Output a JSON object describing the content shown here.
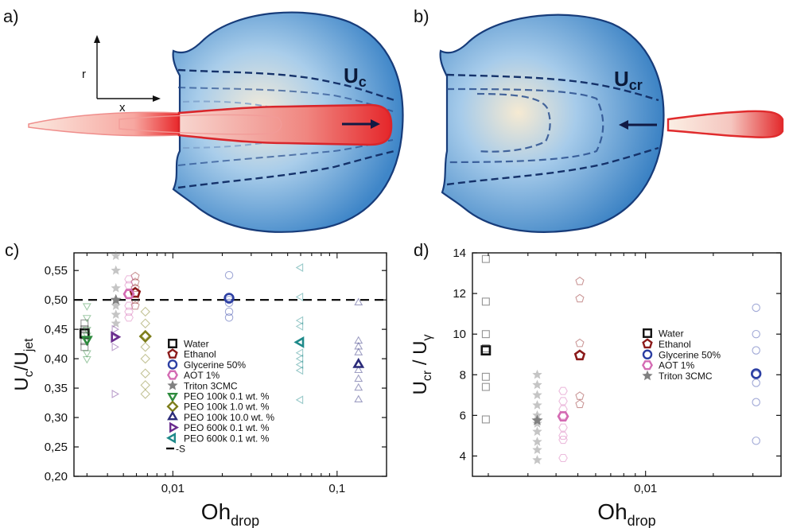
{
  "panels": {
    "a": {
      "label": "a)",
      "axis_r": "r",
      "axis_x": "x",
      "velocity_label": "U",
      "velocity_sub": "c"
    },
    "b": {
      "label": "b)",
      "velocity_label": "U",
      "velocity_sub": "cr"
    }
  },
  "chart_data": [
    {
      "panel": "c)",
      "type": "scatter",
      "xscale": "log",
      "xlim": [
        0.0025,
        0.2
      ],
      "ylim": [
        0.2,
        0.58
      ],
      "xticks": [
        0.01,
        0.1
      ],
      "xtick_labels": [
        "0,01",
        "0,1"
      ],
      "yticks": [
        0.2,
        0.25,
        0.3,
        0.35,
        0.4,
        0.45,
        0.5,
        0.55
      ],
      "ytick_labels": [
        "0,20",
        "0,25",
        "0,30",
        "0,35",
        "0,40",
        "0,45",
        "0,50",
        "0,55"
      ],
      "ylabel": {
        "main": "U",
        "sub1": "c",
        "sep": "/U",
        "sub2": "jet"
      },
      "xlabel": {
        "main": "Oh",
        "sub": "drop"
      },
      "hline": {
        "y": 0.5,
        "style": "dashed",
        "legend": "S"
      },
      "legend_placement": "lower-center",
      "series": [
        {
          "name": "Water",
          "marker": "square",
          "color": "#111111",
          "mean": [
            0.0029,
            0.443
          ],
          "raw_x": 0.0029,
          "raw_y": [
            0.46,
            0.45,
            0.44,
            0.43,
            0.42
          ]
        },
        {
          "name": "Ethanol",
          "marker": "pentagon",
          "color": "#8b1a1a",
          "mean": [
            0.0059,
            0.512
          ],
          "raw_x": 0.0059,
          "raw_y": [
            0.54,
            0.53,
            0.52,
            0.5,
            0.49
          ]
        },
        {
          "name": "Glycerine 50%",
          "marker": "circle",
          "color": "#2c3fa3",
          "mean": [
            0.022,
            0.503
          ],
          "raw_x": 0.022,
          "raw_y": [
            0.542,
            0.505,
            0.5,
            0.495,
            0.48,
            0.47
          ]
        },
        {
          "name": "AOT 1%",
          "marker": "hexagon",
          "color": "#d46bb3",
          "mean": [
            0.0054,
            0.51
          ],
          "raw_x": 0.0054,
          "raw_y": [
            0.535,
            0.525,
            0.51,
            0.49,
            0.48,
            0.47
          ]
        },
        {
          "name": "Triton 3CMC",
          "marker": "star",
          "color": "#808080",
          "mean": [
            0.0045,
            0.5
          ],
          "raw_x": 0.0045,
          "raw_y": [
            0.575,
            0.55,
            0.52,
            0.5,
            0.49,
            0.475,
            0.46
          ]
        },
        {
          "name": "PEO 100k  0.1 wt. %",
          "marker": "triangle-down",
          "color": "#2e8b3e",
          "mean": [
            0.003,
            0.433
          ],
          "raw_x": 0.003,
          "raw_y": [
            0.49,
            0.47,
            0.45,
            0.44,
            0.43,
            0.41,
            0.4
          ]
        },
        {
          "name": "PEO 100k  1.0 wt. %",
          "marker": "diamond",
          "color": "#7d7d1a",
          "mean": [
            0.0068,
            0.438
          ],
          "raw_x": 0.0068,
          "raw_y": [
            0.48,
            0.46,
            0.44,
            0.42,
            0.4,
            0.375,
            0.355,
            0.34
          ]
        },
        {
          "name": "PEO 100k 10.0 wt. %",
          "marker": "triangle-up",
          "color": "#2b2b7a",
          "mean": [
            0.135,
            0.39
          ],
          "raw_x": 0.135,
          "raw_y": [
            0.495,
            0.43,
            0.42,
            0.41,
            0.38,
            0.365,
            0.35,
            0.33
          ]
        },
        {
          "name": "PEO 600k  0.1 wt. %",
          "marker": "triangle-right",
          "color": "#6a2c8e",
          "mean": [
            0.0044,
            0.437
          ],
          "raw_x": 0.0044,
          "raw_y": [
            0.45,
            0.435,
            0.42,
            0.34
          ]
        },
        {
          "name": "PEO 600k  0.1 wt. %",
          "marker": "triangle-left",
          "color": "#1f8a8a",
          "mean": [
            0.06,
            0.428
          ],
          "raw_x": 0.06,
          "raw_y": [
            0.555,
            0.505,
            0.465,
            0.455,
            0.41,
            0.4,
            0.39,
            0.38,
            0.33
          ]
        }
      ]
    },
    {
      "panel": "d)",
      "type": "scatter",
      "xscale": "log",
      "xlim": [
        0.0017,
        0.04
      ],
      "ylim": [
        3,
        14
      ],
      "xticks": [
        0.01
      ],
      "xtick_labels": [
        "0,01"
      ],
      "yticks": [
        4,
        6,
        8,
        10,
        12,
        14
      ],
      "ytick_labels": [
        "4",
        "6",
        "8",
        "10",
        "12",
        "14"
      ],
      "ylabel": {
        "main": "U",
        "sub1": "cr",
        "sep": " / U",
        "sub2": "γ"
      },
      "xlabel": {
        "main": "Oh",
        "sub": "drop"
      },
      "legend_placement": "center-right",
      "series": [
        {
          "name": "Water",
          "marker": "square",
          "color": "#111111",
          "mean": [
            0.00195,
            9.2
          ],
          "raw_x": 0.00195,
          "raw_y": [
            13.7,
            11.6,
            10.0,
            9.3,
            7.9,
            7.4,
            5.8
          ]
        },
        {
          "name": "Ethanol",
          "marker": "pentagon",
          "color": "#8b1a1a",
          "mean": [
            0.0051,
            8.95
          ],
          "raw_x": 0.0051,
          "raw_y": [
            12.6,
            11.75,
            9.55,
            6.95,
            6.55
          ]
        },
        {
          "name": "Glycerine 50%",
          "marker": "circle",
          "color": "#2c3fa3",
          "mean": [
            0.031,
            8.05
          ],
          "raw_x": 0.031,
          "raw_y": [
            11.3,
            10.0,
            9.2,
            8.0,
            7.6,
            6.65,
            4.75
          ]
        },
        {
          "name": "AOT 1%",
          "marker": "hexagon",
          "color": "#d46bb3",
          "mean": [
            0.0043,
            5.95
          ],
          "raw_x": 0.0043,
          "raw_y": [
            7.2,
            6.7,
            6.3,
            6.0,
            5.4,
            5.0,
            4.8,
            3.9
          ]
        },
        {
          "name": "Triton 3CMC",
          "marker": "star",
          "color": "#808080",
          "mean": [
            0.0033,
            5.75
          ],
          "raw_x": 0.0033,
          "raw_y": [
            8.0,
            7.5,
            7.0,
            6.5,
            6.0,
            5.6,
            5.2,
            4.7,
            4.3,
            3.8
          ]
        }
      ]
    }
  ]
}
